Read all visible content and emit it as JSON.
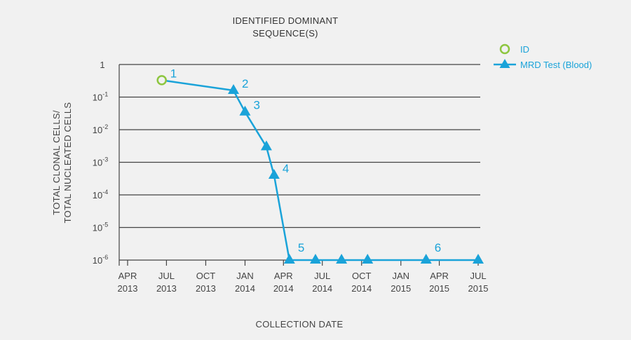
{
  "chart_data": {
    "type": "line",
    "title_lines": [
      "IDENTIFIED DOMINANT",
      "SEQUENCE(S)"
    ],
    "xlabel": "COLLECTION DATE",
    "ylabel_lines": [
      "TOTAL CLONAL CELLS/",
      "TOTAL NUCLEATED CELLS"
    ],
    "yscale": "log",
    "ylim": [
      1e-06,
      1
    ],
    "y_ticks": [
      {
        "base": "1",
        "exp": ""
      },
      {
        "base": "10",
        "exp": "-1"
      },
      {
        "base": "10",
        "exp": "-2"
      },
      {
        "base": "10",
        "exp": "-3"
      },
      {
        "base": "10",
        "exp": "-4"
      },
      {
        "base": "10",
        "exp": "-5"
      },
      {
        "base": "10",
        "exp": "-6"
      }
    ],
    "x_ticks": [
      {
        "date": "2013-04-01",
        "month": "APR",
        "year": "2013"
      },
      {
        "date": "2013-07-01",
        "month": "JUL",
        "year": "2013"
      },
      {
        "date": "2013-10-01",
        "month": "OCT",
        "year": "2013"
      },
      {
        "date": "2014-01-01",
        "month": "JAN",
        "year": "2014"
      },
      {
        "date": "2014-04-01",
        "month": "APR",
        "year": "2014"
      },
      {
        "date": "2014-07-01",
        "month": "JUL",
        "year": "2014"
      },
      {
        "date": "2014-10-01",
        "month": "OCT",
        "year": "2014"
      },
      {
        "date": "2015-01-01",
        "month": "JAN",
        "year": "2015"
      },
      {
        "date": "2015-04-01",
        "month": "APR",
        "year": "2015"
      },
      {
        "date": "2015-07-01",
        "month": "JUL",
        "year": "2015"
      }
    ],
    "grid": true,
    "legend_position": "top-right",
    "colors": {
      "series": "#1aa3d9",
      "id_marker": "#8dc63f",
      "grid": "#444444"
    },
    "series": [
      {
        "name": "ID",
        "marker": "open-circle",
        "points": [
          {
            "x": "2013-06-20",
            "y": 0.33,
            "label": "1"
          }
        ]
      },
      {
        "name": "MRD Test (Blood)",
        "marker": "filled-triangle",
        "points": [
          {
            "x": "2013-06-20",
            "y": 0.33
          },
          {
            "x": "2013-12-05",
            "y": 0.16,
            "label": "2"
          },
          {
            "x": "2014-01-01",
            "y": 0.035,
            "label": "3"
          },
          {
            "x": "2014-02-20",
            "y": 0.003
          },
          {
            "x": "2014-03-10",
            "y": 0.0004,
            "label": "4"
          },
          {
            "x": "2014-04-15",
            "y": 1e-06,
            "label": "5"
          },
          {
            "x": "2014-06-15",
            "y": 1e-06
          },
          {
            "x": "2014-08-15",
            "y": 1e-06
          },
          {
            "x": "2014-10-15",
            "y": 1e-06
          },
          {
            "x": "2015-03-01",
            "y": 1e-06,
            "label": "6"
          },
          {
            "x": "2015-07-01",
            "y": 1e-06
          }
        ]
      }
    ]
  }
}
